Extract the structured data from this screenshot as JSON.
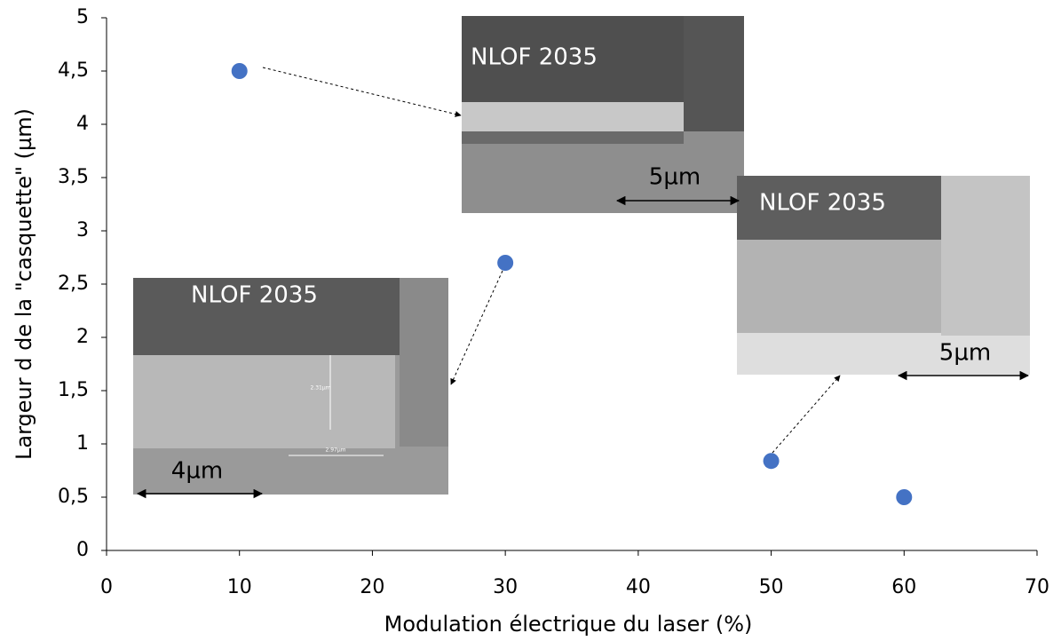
{
  "chart_data": {
    "type": "scatter",
    "x_label": "Modulation électrique du laser (%)",
    "y_label": "Largeur d de la \"casquette\" (µm)",
    "x": [
      10,
      30,
      50,
      60
    ],
    "values": [
      4.5,
      2.7,
      0.84,
      0.5
    ],
    "color": "#4472c4",
    "xlim": [
      0,
      70
    ],
    "xticks": [
      0,
      10,
      20,
      30,
      40,
      50,
      60,
      70
    ],
    "ylim": [
      0,
      5
    ],
    "yticks": [
      0,
      {
        "value": 0.5,
        "label": "0,5"
      },
      1,
      {
        "value": 1.5,
        "label": "1,5"
      },
      2,
      {
        "value": 2.5,
        "label": "2,5"
      },
      3,
      {
        "value": 3.5,
        "label": "3,5"
      },
      4,
      {
        "value": 4.5,
        "label": "4,5"
      },
      5
    ],
    "grid": false,
    "insets": [
      {
        "title": "NLOF 2035",
        "scale_bar": "5µm"
      },
      {
        "title": "NLOF 2035",
        "scale_bar": "5µm"
      },
      {
        "title": "NLOF 2035",
        "scale_bar": "4µm",
        "measurements": [
          "2.31µm",
          "2.97µm"
        ]
      }
    ]
  }
}
